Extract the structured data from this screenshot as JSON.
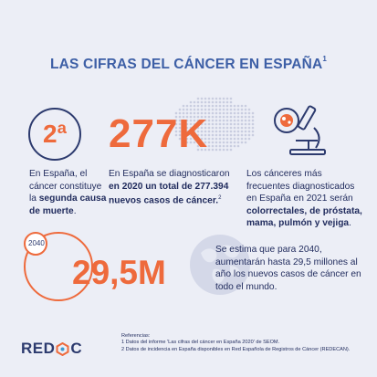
{
  "title": {
    "text": "LAS CIFRAS DEL CÁNCER EN ESPAÑA",
    "sup": "1"
  },
  "stat1": {
    "value": "2ª",
    "text_a": "En España, el cáncer constituye la ",
    "text_b": "segunda causa de muerte",
    "text_c": "."
  },
  "stat2": {
    "value": "277K",
    "text_a": "En España se diagnosticaron ",
    "text_b": "en 2020 un total de 277.394 nuevos casos de cáncer.",
    "text_sup": "2"
  },
  "stat3": {
    "text_a": "Los cánceres más frecuentes diagnosticados en España en 2021 serán ",
    "text_b": "colorrectales, de próstata, mama, pulmón y vejiga",
    "text_c": "."
  },
  "stat4": {
    "year": "2040",
    "value": "29,5M",
    "text": "Se estima que para 2040, aumentarán hasta 29,5 millones al año los nuevos casos de cáncer en todo el mundo."
  },
  "refs": {
    "heading": "Referencias:",
    "line1": "1 Datos del informe 'Las cifras del cáncer en España 2020' de SEOM.",
    "line2": "2 Datos de incidencia en España disponibles en Red Española de Registros de Cáncer (REDECAN)."
  },
  "logo": {
    "part1": "RED",
    "part2": "C"
  },
  "colors": {
    "accent": "#ee6a3c",
    "navy": "#2c3a6e",
    "title_blue": "#3d5fa6",
    "background": "#eceef6"
  }
}
